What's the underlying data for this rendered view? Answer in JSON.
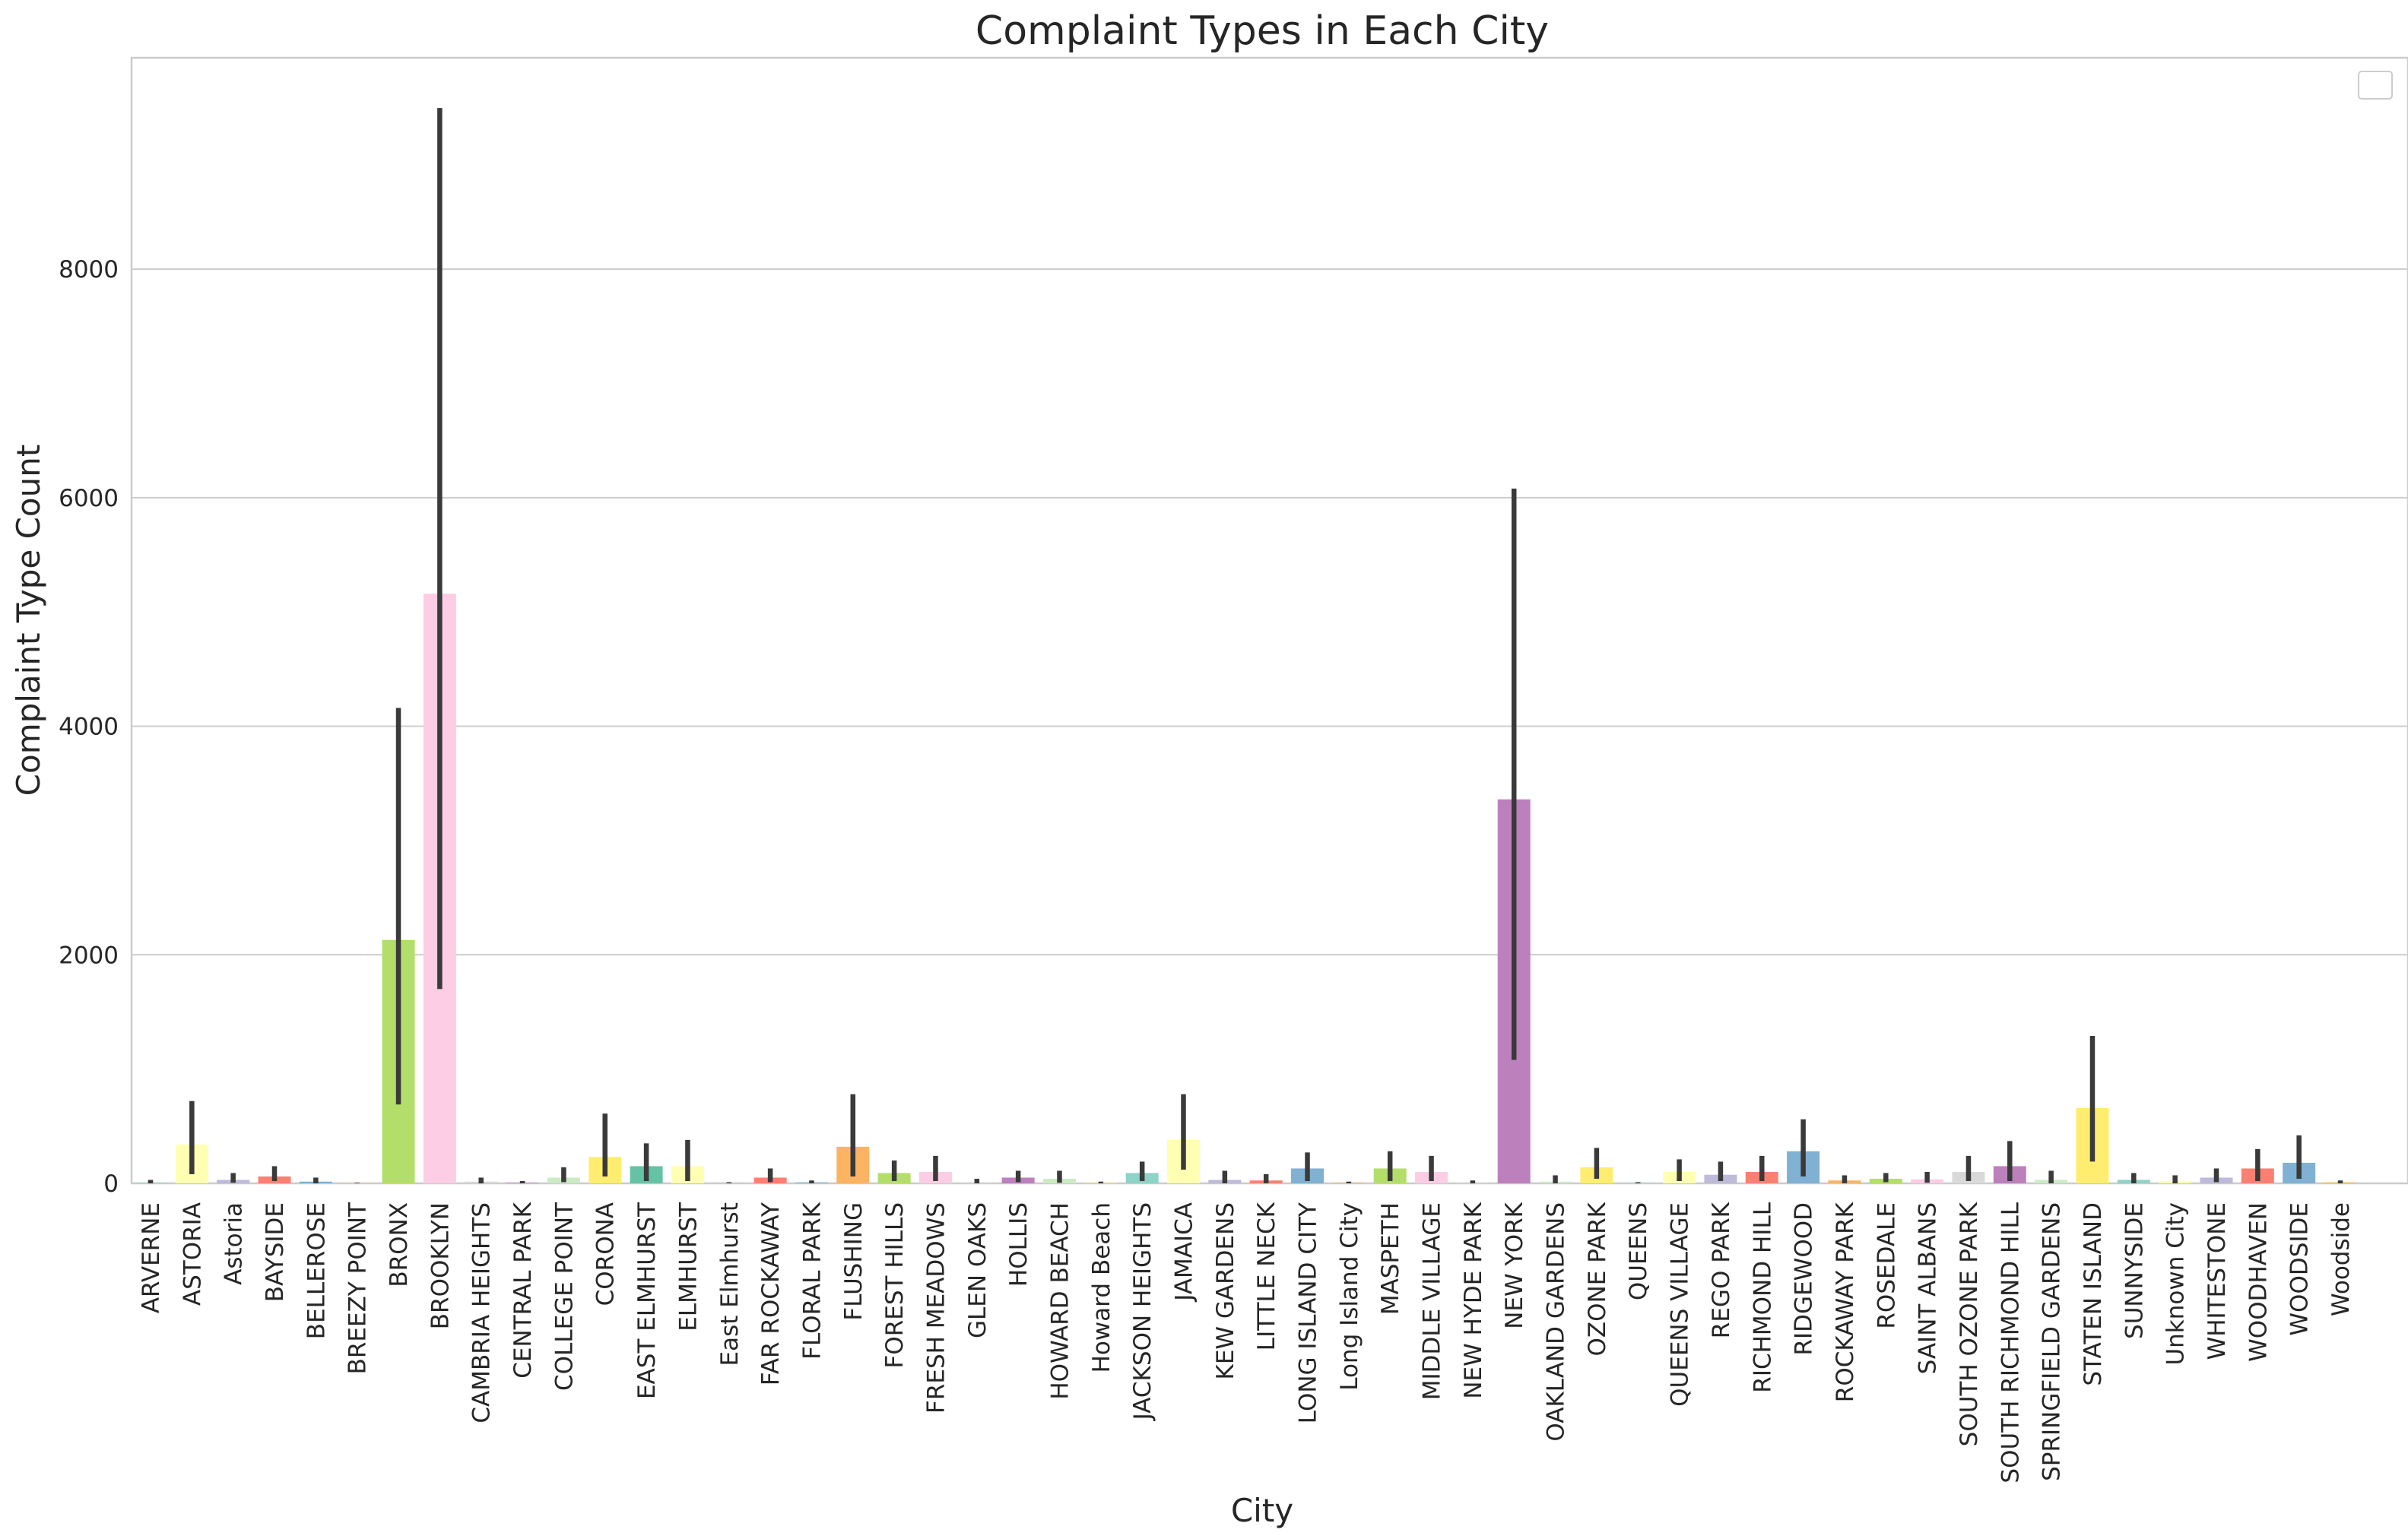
{
  "chart_data": {
    "type": "bar",
    "title": "Complaint Types in Each City",
    "xlabel": "City",
    "ylabel": "Complaint Type Count",
    "ylim": [
      0,
      9850
    ],
    "yticks": [
      0,
      2000,
      4000,
      6000,
      8000
    ],
    "grid": true,
    "legend": "top-right",
    "categories": [
      "ARVERNE",
      "ASTORIA",
      "Astoria",
      "BAYSIDE",
      "BELLEROSE",
      "BREEZY POINT",
      "BRONX",
      "BROOKLYN",
      "CAMBRIA HEIGHTS",
      "CENTRAL PARK",
      "COLLEGE POINT",
      "CORONA",
      "EAST ELMHURST",
      "ELMHURST",
      "East Elmhurst",
      "FAR ROCKAWAY",
      "FLORAL PARK",
      "FLUSHING",
      "FOREST HILLS",
      "FRESH MEADOWS",
      "GLEN OAKS",
      "HOLLIS",
      "HOWARD BEACH",
      "Howard Beach",
      "JACKSON HEIGHTS",
      "JAMAICA",
      "KEW GARDENS",
      "LITTLE NECK",
      "LONG ISLAND CITY",
      "Long Island City",
      "MASPETH",
      "MIDDLE VILLAGE",
      "NEW HYDE PARK",
      "NEW YORK",
      "OAKLAND GARDENS",
      "OZONE PARK",
      "QUEENS",
      "QUEENS VILLAGE",
      "REGO PARK",
      "RICHMOND HILL",
      "RIDGEWOOD",
      "ROCKAWAY PARK",
      "ROSEDALE",
      "SAINT ALBANS",
      "SOUTH OZONE PARK",
      "SOUTH RICHMOND HILL",
      "SPRINGFIELD GARDENS",
      "STATEN ISLAND",
      "SUNNYSIDE",
      "Unknown City",
      "WHITESTONE",
      "WOODHAVEN",
      "WOODSIDE",
      "Woodside"
    ],
    "values": [
      5,
      340,
      30,
      60,
      15,
      2,
      2130,
      5160,
      15,
      5,
      50,
      230,
      150,
      150,
      3,
      50,
      8,
      320,
      90,
      100,
      10,
      50,
      40,
      5,
      90,
      380,
      30,
      25,
      130,
      5,
      130,
      100,
      8,
      3360,
      15,
      140,
      3,
      100,
      75,
      100,
      280,
      25,
      40,
      35,
      100,
      150,
      30,
      660,
      30,
      20,
      50,
      130,
      180,
      8
    ],
    "error_low": [
      0,
      80,
      5,
      20,
      0,
      0,
      690,
      1700,
      0,
      0,
      10,
      60,
      20,
      20,
      0,
      10,
      0,
      60,
      20,
      20,
      0,
      10,
      5,
      0,
      20,
      120,
      0,
      0,
      20,
      0,
      20,
      20,
      0,
      1080,
      0,
      40,
      0,
      20,
      20,
      20,
      60,
      0,
      10,
      5,
      20,
      20,
      0,
      190,
      0,
      0,
      10,
      20,
      40,
      0
    ],
    "error_high": [
      30,
      720,
      90,
      150,
      50,
      5,
      4160,
      9410,
      50,
      20,
      140,
      610,
      350,
      380,
      10,
      130,
      25,
      780,
      200,
      240,
      40,
      110,
      110,
      15,
      190,
      780,
      110,
      80,
      270,
      15,
      280,
      240,
      25,
      6080,
      70,
      310,
      10,
      210,
      190,
      240,
      560,
      70,
      90,
      100,
      240,
      370,
      110,
      1290,
      90,
      70,
      130,
      300,
      420,
      25
    ],
    "colors": [
      "#8dd3c7",
      "#ffffb3",
      "#bebada",
      "#fb8072",
      "#80b1d3",
      "#fdb462",
      "#b3de69",
      "#fccde5",
      "#d9d9d9",
      "#bc80bd",
      "#ccebc5",
      "#ffed6f",
      "#66c2a5",
      "#ffffb3",
      "#bebada",
      "#fb8072",
      "#80b1d3",
      "#fdb462",
      "#b3de69",
      "#fccde5",
      "#d9d9d9",
      "#bc80bd",
      "#ccebc5",
      "#ffed6f",
      "#8dd3c7",
      "#ffffb3",
      "#bebada",
      "#fb8072",
      "#80b1d3",
      "#fdb462",
      "#b3de69",
      "#fccde5",
      "#d9d9d9",
      "#bc80bd",
      "#ccebc5",
      "#ffed6f",
      "#8dd3c7",
      "#ffffb3",
      "#bebada",
      "#fb8072",
      "#80b1d3",
      "#fdb462",
      "#b3de69",
      "#fccde5",
      "#d9d9d9",
      "#bc80bd",
      "#ccebc5",
      "#ffed6f",
      "#8dd3c7",
      "#ffffb3",
      "#bebada",
      "#fb8072",
      "#80b1d3",
      "#fdb462"
    ]
  }
}
